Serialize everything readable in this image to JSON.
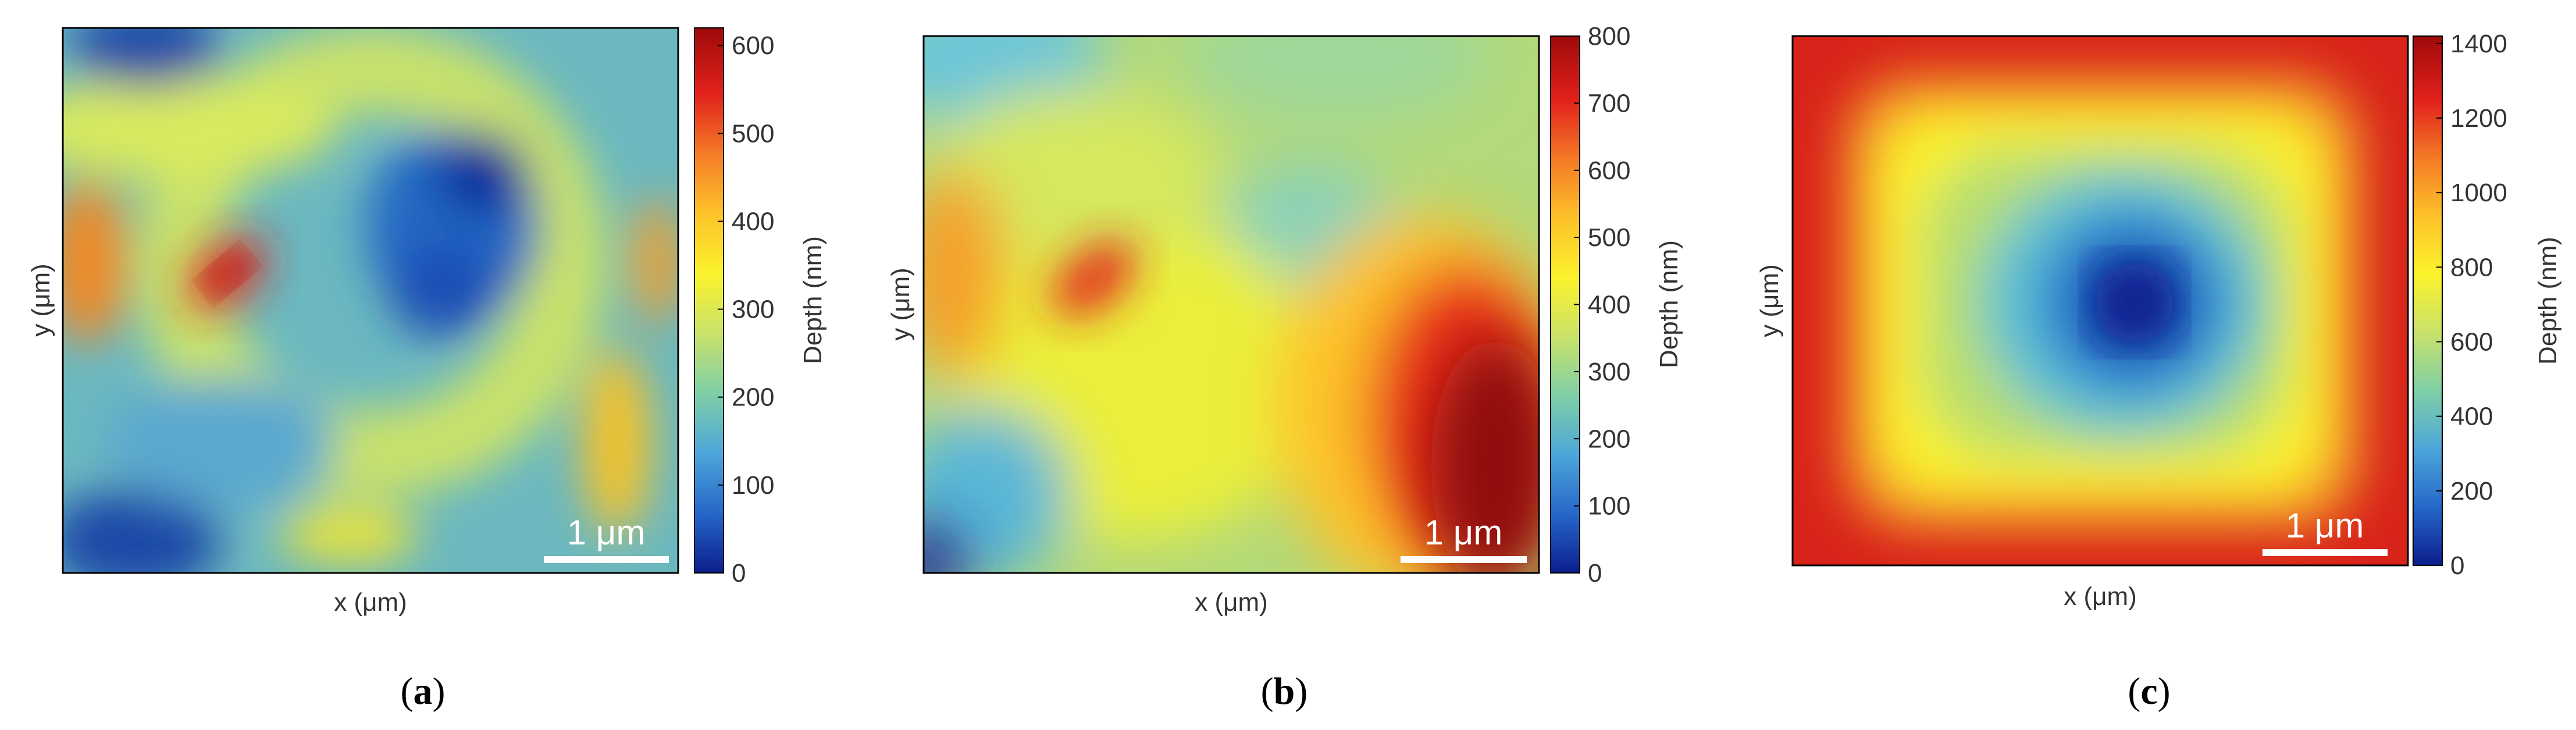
{
  "colors": {
    "jet": [
      "#00007f",
      "#0000ff",
      "#0080ff",
      "#00ffff",
      "#80ff80",
      "#ffff00",
      "#ff8000",
      "#ff0000",
      "#7f0000"
    ],
    "parula_jet": [
      "#0b1e8c",
      "#2667c9",
      "#4da6d9",
      "#7fcfa6",
      "#c9e26a",
      "#fbf22c",
      "#fdc22a",
      "#f47a26",
      "#e2211c",
      "#9e0a0a"
    ],
    "frame": "#000000",
    "scalebar": "#ffffff"
  },
  "panels": [
    {
      "letter": "(a)",
      "letter_char": "a",
      "xlabel": "x (μm)",
      "ylabel": "y (μm)",
      "scalebar_label": "1 μm",
      "colorbar": {
        "label": "Depth (nm)",
        "min": 0,
        "max": 620,
        "ticks": [
          0,
          100,
          200,
          300,
          400,
          500,
          600
        ]
      },
      "chart_data": {
        "type": "heatmap",
        "title": "",
        "xlabel": "x (μm)",
        "ylabel": "y (μm)",
        "value_range": [
          0,
          620
        ],
        "description": "irregular ring of ~300 nm, dark-blue depressions near 50 nm in center-right and corners, red hot spot ~600 nm left of center",
        "features": [
          {
            "u": 0.28,
            "v": 0.45,
            "value": 590
          },
          {
            "u": 0.07,
            "v": 0.45,
            "value": 470
          },
          {
            "u": 0.97,
            "v": 0.45,
            "value": 470
          },
          {
            "u": 0.92,
            "v": 0.78,
            "value": 430
          },
          {
            "u": 0.72,
            "v": 0.3,
            "value": 40
          },
          {
            "u": 0.2,
            "v": 0.93,
            "value": 30
          },
          {
            "u": 0.15,
            "v": 0.05,
            "value": 40
          }
        ]
      }
    },
    {
      "letter": "(b)",
      "letter_char": "b",
      "xlabel": "x (μm)",
      "ylabel": "y (μm)",
      "scalebar_label": "1 μm",
      "colorbar": {
        "label": "Depth (nm)",
        "min": 0,
        "max": 800,
        "ticks": [
          0,
          100,
          200,
          300,
          400,
          500,
          600,
          700,
          800
        ]
      },
      "chart_data": {
        "type": "heatmap",
        "title": "",
        "xlabel": "x (μm)",
        "ylabel": "y (μm)",
        "value_range": [
          0,
          800
        ],
        "description": "mostly 300-450 nm, deep red region ~780 nm toward bottom-right, hot spot ~720 nm left of center, dark blue bottom-left corner",
        "features": [
          {
            "u": 0.28,
            "v": 0.46,
            "value": 730
          },
          {
            "u": 0.07,
            "v": 0.46,
            "value": 600
          },
          {
            "u": 0.9,
            "v": 0.7,
            "value": 790
          },
          {
            "u": 0.03,
            "v": 0.97,
            "value": 40
          },
          {
            "u": 0.1,
            "v": 0.05,
            "value": 200
          }
        ]
      }
    },
    {
      "letter": "(c)",
      "letter_char": "c",
      "xlabel": "x (μm)",
      "ylabel": "y (μm)",
      "scalebar_label": "1 μm",
      "colorbar": {
        "label": "Depth (nm)",
        "min": 0,
        "max": 1420,
        "ticks": [
          0,
          200,
          400,
          600,
          800,
          1000,
          1200,
          1400
        ]
      },
      "chart_data": {
        "type": "heatmap",
        "title": "",
        "xlabel": "x (μm)",
        "ylabel": "y (μm)",
        "value_range": [
          0,
          1420
        ],
        "description": "square frame of high values ~1300 nm at edges decreasing to a deep-blue minimum ~50 nm slightly right of center",
        "features": [
          {
            "u": 0.58,
            "v": 0.5,
            "value": 50
          },
          {
            "u": 0.5,
            "v": 0.02,
            "value": 1350
          },
          {
            "u": 0.5,
            "v": 0.98,
            "value": 1350
          },
          {
            "u": 0.02,
            "v": 0.5,
            "value": 1350
          },
          {
            "u": 0.98,
            "v": 0.5,
            "value": 1350
          }
        ]
      }
    }
  ]
}
